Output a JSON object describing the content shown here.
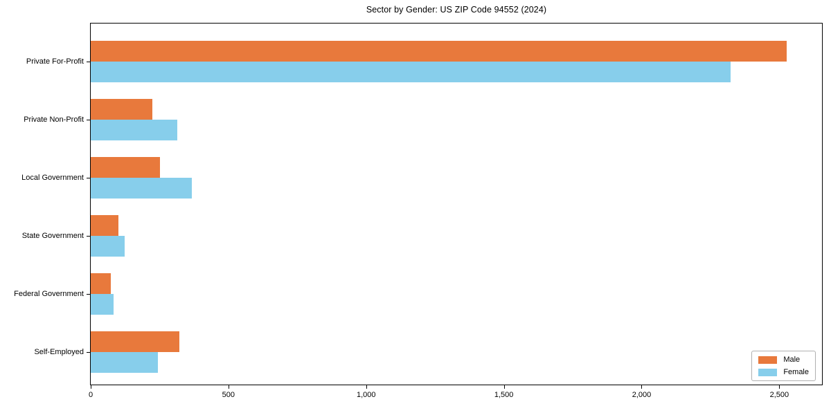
{
  "figure": {
    "background": "#ffffff"
  },
  "chart_data": {
    "type": "bar",
    "orientation": "horizontal",
    "title": "Sector by Gender: US ZIP Code 94552 (2024)",
    "xlabel": "",
    "ylabel": "",
    "grid": false,
    "categories": [
      "Private For-Profit",
      "Private Non-Profit",
      "Local Government",
      "State Government",
      "Federal Government",
      "Self-Employed"
    ],
    "series": [
      {
        "name": "Male",
        "color": "#e8793c",
        "values": [
          2527,
          224,
          252,
          101,
          74,
          321
        ]
      },
      {
        "name": "Female",
        "color": "#87ceeb",
        "values": [
          2322,
          314,
          367,
          122,
          84,
          243
        ]
      }
    ],
    "xlim": [
      0,
      2655
    ],
    "xticks": [
      {
        "value": 0,
        "label": "0"
      },
      {
        "value": 500,
        "label": "500"
      },
      {
        "value": 1000,
        "label": "1,000"
      },
      {
        "value": 1500,
        "label": "1,500"
      },
      {
        "value": 2000,
        "label": "2,000"
      },
      {
        "value": 2500,
        "label": "2,500"
      }
    ],
    "legend": {
      "position": "lower right"
    }
  }
}
